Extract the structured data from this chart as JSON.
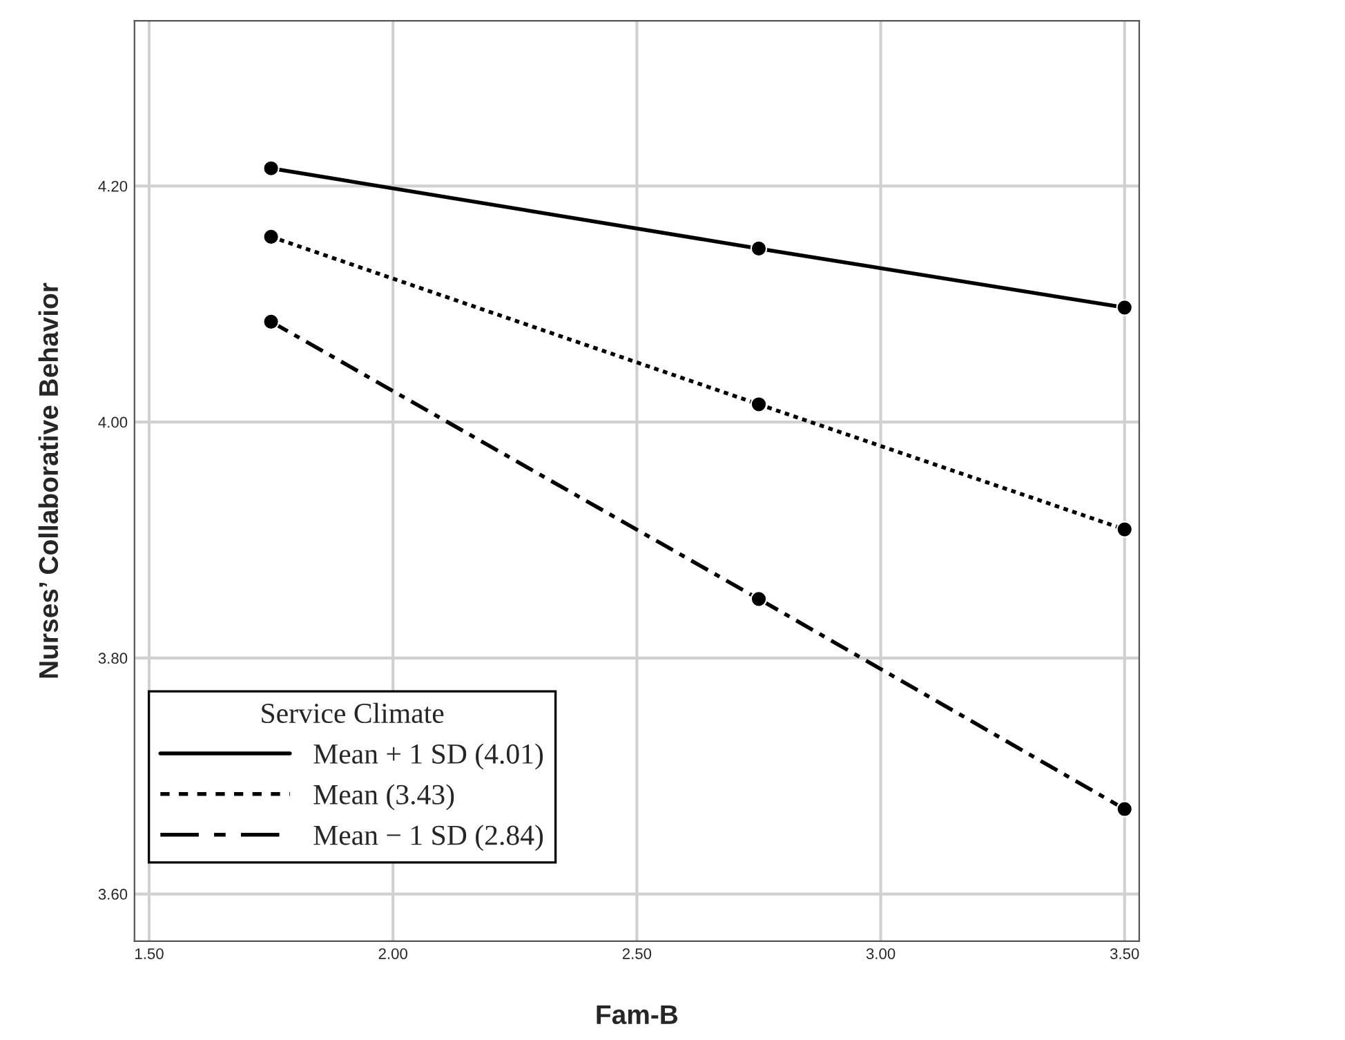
{
  "chart_data": {
    "type": "line",
    "xlabel": "Fam-B",
    "ylabel": "Nurses’ Collaborative Behavior",
    "legend_title": "Service Climate",
    "x": [
      1.75,
      2.75,
      3.5
    ],
    "series": [
      {
        "name": "Mean + 1 SD (4.01)",
        "color": "#000000",
        "values": [
          4.215,
          4.147,
          4.097
        ],
        "line_style": "solid"
      },
      {
        "name": "Mean (3.43)",
        "color": "#000000",
        "values": [
          4.157,
          4.015,
          3.909
        ],
        "line_style": "dotted"
      },
      {
        "name": "Mean − 1 SD (2.84)",
        "color": "#000000",
        "values": [
          4.085,
          3.85,
          3.672
        ],
        "line_style": "dashdot"
      }
    ],
    "xlim": [
      1.47,
      3.53
    ],
    "ylim": [
      3.56,
      4.34
    ],
    "xticks": [
      {
        "value": 1.5,
        "label": "1.50"
      },
      {
        "value": 2,
        "label": "2.00"
      },
      {
        "value": 2.5,
        "label": "2.50"
      },
      {
        "value": 3,
        "label": "3.00"
      },
      {
        "value": 3.5,
        "label": "3.50"
      }
    ],
    "yticks": [
      {
        "value": 3.6,
        "label": "3.60"
      },
      {
        "value": 3.8,
        "label": "3.80"
      },
      {
        "value": 4,
        "label": "4.00"
      },
      {
        "value": 4.2,
        "label": "4.20"
      }
    ],
    "grid": true,
    "legend": "bottom left",
    "marker": "circle"
  }
}
